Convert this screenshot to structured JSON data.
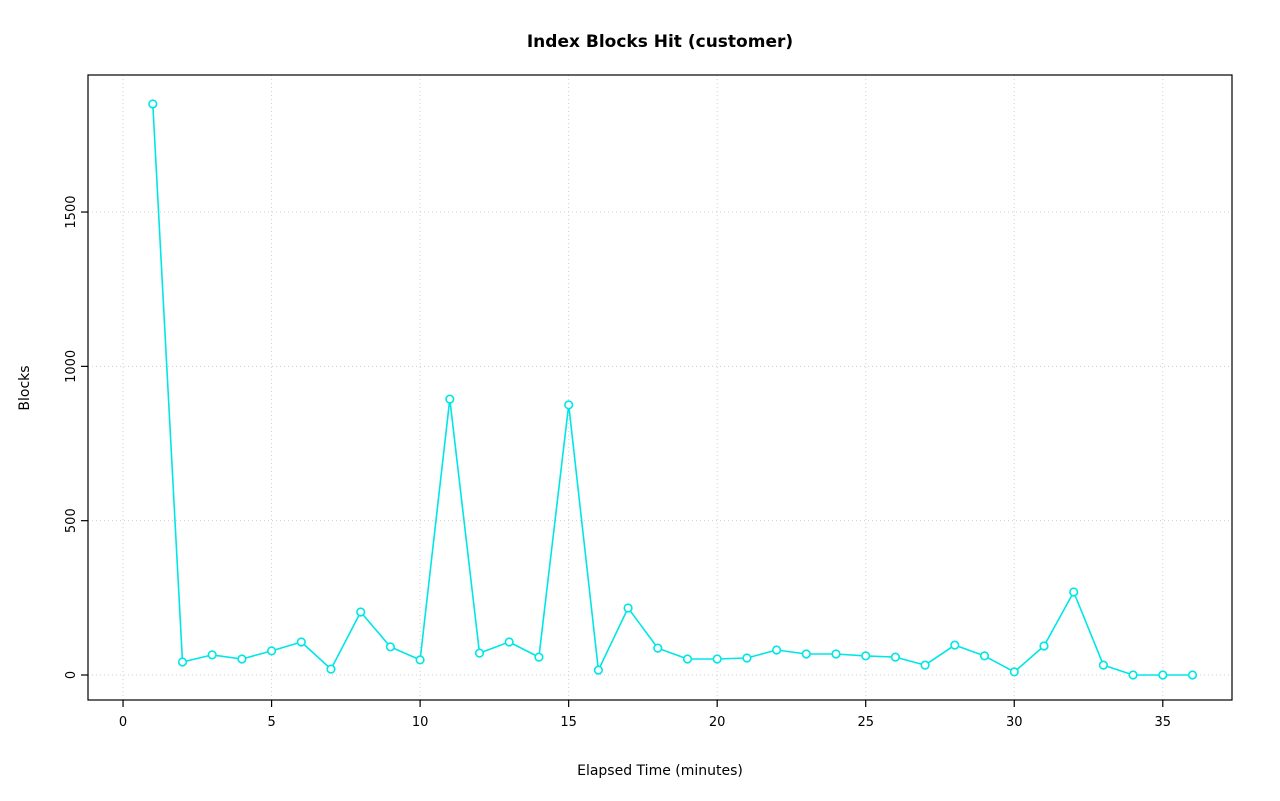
{
  "chart_data": {
    "type": "line",
    "title": "Index Blocks Hit (customer)",
    "xlabel": "Elapsed Time (minutes)",
    "ylabel": "Blocks",
    "x": [
      1,
      2,
      3,
      4,
      5,
      6,
      7,
      8,
      9,
      10,
      11,
      12,
      13,
      14,
      15,
      16,
      17,
      18,
      19,
      20,
      21,
      22,
      23,
      24,
      25,
      26,
      27,
      28,
      29,
      30,
      31,
      32,
      33,
      34,
      35,
      36
    ],
    "y": [
      1850,
      42,
      65,
      52,
      78,
      107,
      19,
      204,
      91,
      49,
      894,
      71,
      107,
      58,
      875,
      16,
      217,
      87,
      52,
      52,
      55,
      81,
      68,
      68,
      62,
      58,
      32,
      97,
      62,
      10,
      94,
      269,
      32,
      0,
      0,
      0
    ],
    "x_ticks": [
      0,
      5,
      10,
      15,
      20,
      25,
      30,
      35
    ],
    "y_ticks": [
      0,
      500,
      1000,
      1500
    ],
    "xlim": [
      -1.18,
      37.33
    ],
    "ylim": [
      -81,
      1944
    ],
    "grid": true,
    "legend": "none",
    "marker": "open-circle",
    "series_color": "#00e6e6",
    "background_color": "#ffffff",
    "grid_color": "#cfcfcf"
  }
}
